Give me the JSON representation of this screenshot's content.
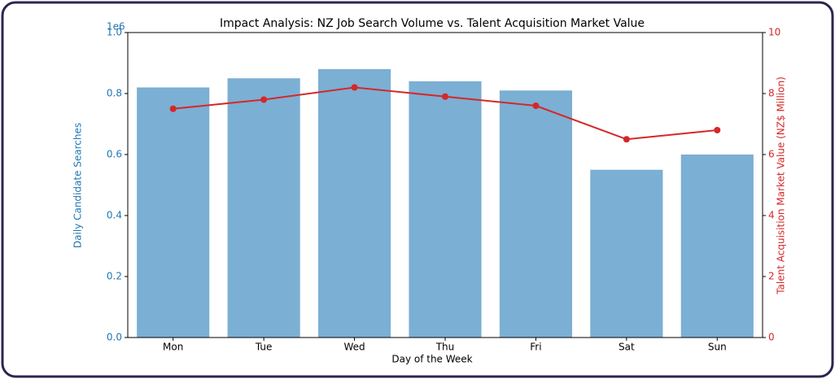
{
  "chart_data": {
    "type": "combo",
    "title": "Impact Analysis: NZ Job Search Volume vs. Talent Acquisition Market Value",
    "x_label": "Day of the Week",
    "y_label": "Daily Candidate Searches",
    "y2_label": "Talent Acquisition Market Value (NZ$ Million)",
    "y_offset_label": "1e6",
    "categories": [
      "Mon",
      "Tue",
      "Wed",
      "Thu",
      "Fri",
      "Sat",
      "Sun"
    ],
    "series": [
      {
        "type": "bar",
        "color": "#7bafd4",
        "values": [
          820000,
          850000,
          880000,
          840000,
          810000,
          550000,
          600000
        ]
      },
      {
        "type": "line",
        "axis": "y2",
        "color": "#d62728",
        "values": [
          7.5,
          7.8,
          8.2,
          7.9,
          7.6,
          6.5,
          6.8
        ]
      }
    ],
    "ylim": [
      0,
      1000000
    ],
    "yticks": [
      {
        "value": 0,
        "label": "0.0"
      },
      {
        "value": 200000,
        "label": "0.2"
      },
      {
        "value": 400000,
        "label": "0.4"
      },
      {
        "value": 600000,
        "label": "0.6"
      },
      {
        "value": 800000,
        "label": "0.8"
      },
      {
        "value": 1000000,
        "label": "1.0"
      }
    ],
    "y_color": "#1f77b4",
    "y2lim": [
      0,
      10
    ],
    "y2ticks": [
      0,
      2,
      4,
      6,
      8,
      10
    ],
    "y2_color": "#d62728"
  }
}
